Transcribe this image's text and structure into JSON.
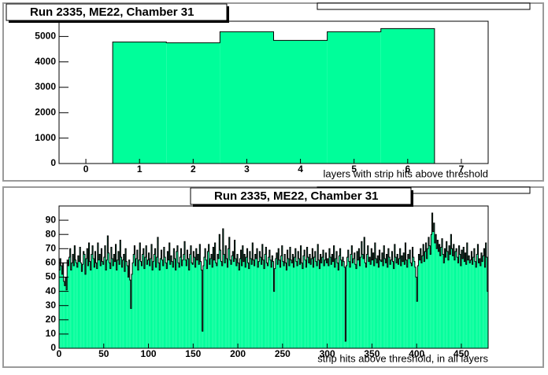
{
  "chart_data": [
    {
      "type": "histogram",
      "title": "Run 2335, ME22, Chamber 31",
      "x_label": "layers with strip hits above threshold",
      "bins": [
        -0.5,
        0.5,
        1.5,
        2.5,
        3.5,
        4.5,
        5.5,
        6.5,
        7.5
      ],
      "values": [
        0,
        4784,
        4753,
        5185,
        4846,
        5185,
        5309,
        0
      ],
      "color": "#00fe9a",
      "xlim": [
        -0.5,
        7.5
      ],
      "xticks": [
        0,
        1,
        2,
        3,
        4,
        5,
        6,
        7
      ],
      "ylim": [
        0,
        5600
      ],
      "yticks": [
        0,
        1000,
        2000,
        3000,
        4000,
        5000
      ]
    },
    {
      "type": "histogram",
      "title": "Run 2335, ME22, Chamber 31",
      "x_label": "strip hits above threshold, in all layers",
      "bins": [
        0,
        1,
        2,
        3,
        4,
        5,
        6,
        7,
        8,
        9,
        10,
        11,
        12,
        13,
        14,
        15,
        16,
        17,
        18,
        19,
        20,
        21,
        22,
        23,
        24,
        25,
        26,
        27,
        28,
        29,
        30,
        31,
        32,
        33,
        34,
        35,
        36,
        37,
        38,
        39,
        40,
        41,
        42,
        43,
        44,
        45,
        46,
        47,
        48,
        49,
        50,
        51,
        52,
        53,
        54,
        55,
        56,
        57,
        58,
        59,
        60,
        61,
        62,
        63,
        64,
        65,
        66,
        67,
        68,
        69,
        70,
        71,
        72,
        73,
        74,
        75,
        76,
        77,
        78,
        79,
        80,
        81,
        82,
        83,
        84,
        85,
        86,
        87,
        88,
        89,
        90,
        91,
        92,
        93,
        94,
        95,
        96,
        97,
        98,
        99,
        100,
        101,
        102,
        103,
        104,
        105,
        106,
        107,
        108,
        109,
        110,
        111,
        112,
        113,
        114,
        115,
        116,
        117,
        118,
        119,
        120,
        121,
        122,
        123,
        124,
        125,
        126,
        127,
        128,
        129,
        130,
        131,
        132,
        133,
        134,
        135,
        136,
        137,
        138,
        139,
        140,
        141,
        142,
        143,
        144,
        145,
        146,
        147,
        148,
        149,
        150,
        151,
        152,
        153,
        154,
        155,
        156,
        157,
        158,
        159,
        160,
        161,
        162,
        163,
        164,
        165,
        166,
        167,
        168,
        169,
        170,
        171,
        172,
        173,
        174,
        175,
        176,
        177,
        178,
        179,
        180,
        181,
        182,
        183,
        184,
        185,
        186,
        187,
        188,
        189,
        190,
        191,
        192,
        193,
        194,
        195,
        196,
        197,
        198,
        199,
        200,
        201,
        202,
        203,
        204,
        205,
        206,
        207,
        208,
        209,
        210,
        211,
        212,
        213,
        214,
        215,
        216,
        217,
        218,
        219,
        220,
        221,
        222,
        223,
        224,
        225,
        226,
        227,
        228,
        229,
        230,
        231,
        232,
        233,
        234,
        235,
        236,
        237,
        238,
        239,
        240,
        241,
        242,
        243,
        244,
        245,
        246,
        247,
        248,
        249,
        250,
        251,
        252,
        253,
        254,
        255,
        256,
        257,
        258,
        259,
        260,
        261,
        262,
        263,
        264,
        265,
        266,
        267,
        268,
        269,
        270,
        271,
        272,
        273,
        274,
        275,
        276,
        277,
        278,
        279,
        280,
        281,
        282,
        283,
        284,
        285,
        286,
        287,
        288,
        289,
        290,
        291,
        292,
        293,
        294,
        295,
        296,
        297,
        298,
        299,
        300,
        301,
        302,
        303,
        304,
        305,
        306,
        307,
        308,
        309,
        310,
        311,
        312,
        313,
        314,
        315,
        316,
        317,
        318,
        319,
        320,
        321,
        322,
        323,
        324,
        325,
        326,
        327,
        328,
        329,
        330,
        331,
        332,
        333,
        334,
        335,
        336,
        337,
        338,
        339,
        340,
        341,
        342,
        343,
        344,
        345,
        346,
        347,
        348,
        349,
        350,
        351,
        352,
        353,
        354,
        355,
        356,
        357,
        358,
        359,
        360,
        361,
        362,
        363,
        364,
        365,
        366,
        367,
        368,
        369,
        370,
        371,
        372,
        373,
        374,
        375,
        376,
        377,
        378,
        379,
        380,
        381,
        382,
        383,
        384,
        385,
        386,
        387,
        388,
        389,
        390,
        391,
        392,
        393,
        394,
        395,
        396,
        397,
        398,
        399,
        400,
        401,
        402,
        403,
        404,
        405,
        406,
        407,
        408,
        409,
        410,
        411,
        412,
        413,
        414,
        415,
        416,
        417,
        418,
        419,
        420,
        421,
        422,
        423,
        424,
        425,
        426,
        427,
        428,
        429,
        430,
        431,
        432,
        433,
        434,
        435,
        436,
        437,
        438,
        439,
        440,
        441,
        442,
        443,
        444,
        445,
        446,
        447,
        448,
        449,
        450,
        451,
        452,
        453,
        454,
        455,
        456,
        457,
        458,
        459,
        460,
        461,
        462,
        463,
        464,
        465,
        466,
        467,
        468,
        469,
        470,
        471,
        472,
        473,
        474,
        475,
        476,
        477,
        478,
        479,
        480
      ],
      "values": [
        55,
        63,
        58,
        52,
        60,
        47,
        44,
        50,
        41,
        62,
        58,
        64,
        70,
        55,
        60,
        66,
        58,
        72,
        62,
        60,
        57,
        65,
        61,
        71,
        60,
        54,
        59,
        68,
        66,
        52,
        63,
        70,
        58,
        74,
        61,
        55,
        66,
        72,
        63,
        57,
        68,
        60,
        56,
        74,
        62,
        66,
        58,
        70,
        61,
        59,
        64,
        72,
        55,
        62,
        79,
        67,
        60,
        56,
        71,
        63,
        58,
        66,
        61,
        73,
        55,
        62,
        68,
        59,
        76,
        64,
        57,
        62,
        66,
        54,
        70,
        61,
        58,
        50,
        62,
        48,
        28,
        52,
        60,
        66,
        72,
        58,
        63,
        69,
        55,
        62,
        74,
        61,
        58,
        66,
        70,
        56,
        64,
        72,
        59,
        62,
        67,
        58,
        63,
        73,
        55,
        61,
        66,
        70,
        57,
        64,
        78,
        60,
        55,
        63,
        69,
        62,
        58,
        71,
        64,
        60,
        56,
        68,
        62,
        74,
        59,
        65,
        61,
        57,
        70,
        63,
        55,
        68,
        72,
        60,
        57,
        64,
        70,
        58,
        62,
        66,
        75,
        62,
        58,
        69,
        63,
        55,
        66,
        72,
        60,
        59,
        68,
        64,
        57,
        70,
        62,
        66,
        59,
        73,
        61,
        55,
        12,
        58,
        64,
        70,
        62,
        56,
        68,
        73,
        59,
        63,
        66,
        57,
        71,
        62,
        74,
        60,
        58,
        66,
        63,
        80,
        69,
        61,
        58,
        84,
        66,
        60,
        72,
        63,
        57,
        70,
        78,
        62,
        59,
        65,
        68,
        61,
        76,
        63,
        58,
        66,
        60,
        55,
        63,
        69,
        58,
        72,
        61,
        66,
        57,
        64,
        70,
        60,
        56,
        68,
        63,
        59,
        74,
        62,
        58,
        66,
        63,
        70,
        57,
        61,
        68,
        64,
        59,
        73,
        62,
        56,
        66,
        71,
        60,
        58,
        64,
        69,
        62,
        57,
        65,
        61,
        40,
        56,
        63,
        67,
        59,
        70,
        62,
        57,
        65,
        72,
        61,
        58,
        66,
        60,
        55,
        69,
        63,
        58,
        71,
        62,
        60,
        66,
        57,
        64,
        70,
        61,
        58,
        68,
        63,
        59,
        72,
        60,
        56,
        65,
        69,
        62,
        57,
        71,
        64,
        60,
        66,
        59,
        63,
        70,
        57,
        64,
        68,
        61,
        58,
        73,
        62,
        56,
        66,
        60,
        64,
        69,
        58,
        62,
        67,
        60,
        63,
        58,
        70,
        64,
        59,
        66,
        61,
        72,
        57,
        63,
        68,
        60,
        55,
        65,
        70,
        62,
        58,
        64,
        61,
        57,
        5,
        58,
        64,
        69,
        61,
        57,
        66,
        72,
        60,
        63,
        67,
        59,
        56,
        68,
        62,
        70,
        58,
        64,
        75,
        66,
        63,
        78,
        60,
        57,
        66,
        72,
        61,
        64,
        59,
        70,
        62,
        67,
        58,
        74,
        63,
        60,
        65,
        57,
        69,
        62,
        61,
        67,
        58,
        72,
        63,
        60,
        66,
        57,
        70,
        64,
        59,
        62,
        68,
        61,
        56,
        73,
        64,
        60,
        66,
        59,
        63,
        70,
        58,
        65,
        61,
        67,
        59,
        74,
        62,
        57,
        66,
        63,
        69,
        60,
        58,
        71,
        64,
        61,
        57,
        50,
        33,
        58,
        66,
        62,
        70,
        60,
        65,
        73,
        61,
        68,
        74,
        63,
        70,
        78,
        72,
        66,
        80,
        95,
        82,
        88,
        74,
        80,
        70,
        76,
        68,
        73,
        65,
        71,
        77,
        66,
        60,
        70,
        64,
        75,
        68,
        62,
        72,
        66,
        80,
        70,
        65,
        73,
        62,
        68,
        70,
        64,
        60,
        72,
        66,
        58,
        69,
        63,
        71,
        61,
        67,
        59,
        74,
        62,
        65,
        60,
        62,
        68,
        59,
        64,
        70,
        61,
        57,
        66,
        73,
        60,
        63,
        58,
        67,
        61,
        65,
        70,
        57,
        74,
        64,
        40
      ],
      "color": "#00fe9a",
      "xlim": [
        0,
        480
      ],
      "xticks": [
        0,
        50,
        100,
        150,
        200,
        250,
        300,
        350,
        400,
        450
      ],
      "ylim": [
        0,
        100
      ],
      "yticks": [
        0,
        10,
        20,
        30,
        40,
        50,
        60,
        70,
        80,
        90
      ]
    }
  ]
}
